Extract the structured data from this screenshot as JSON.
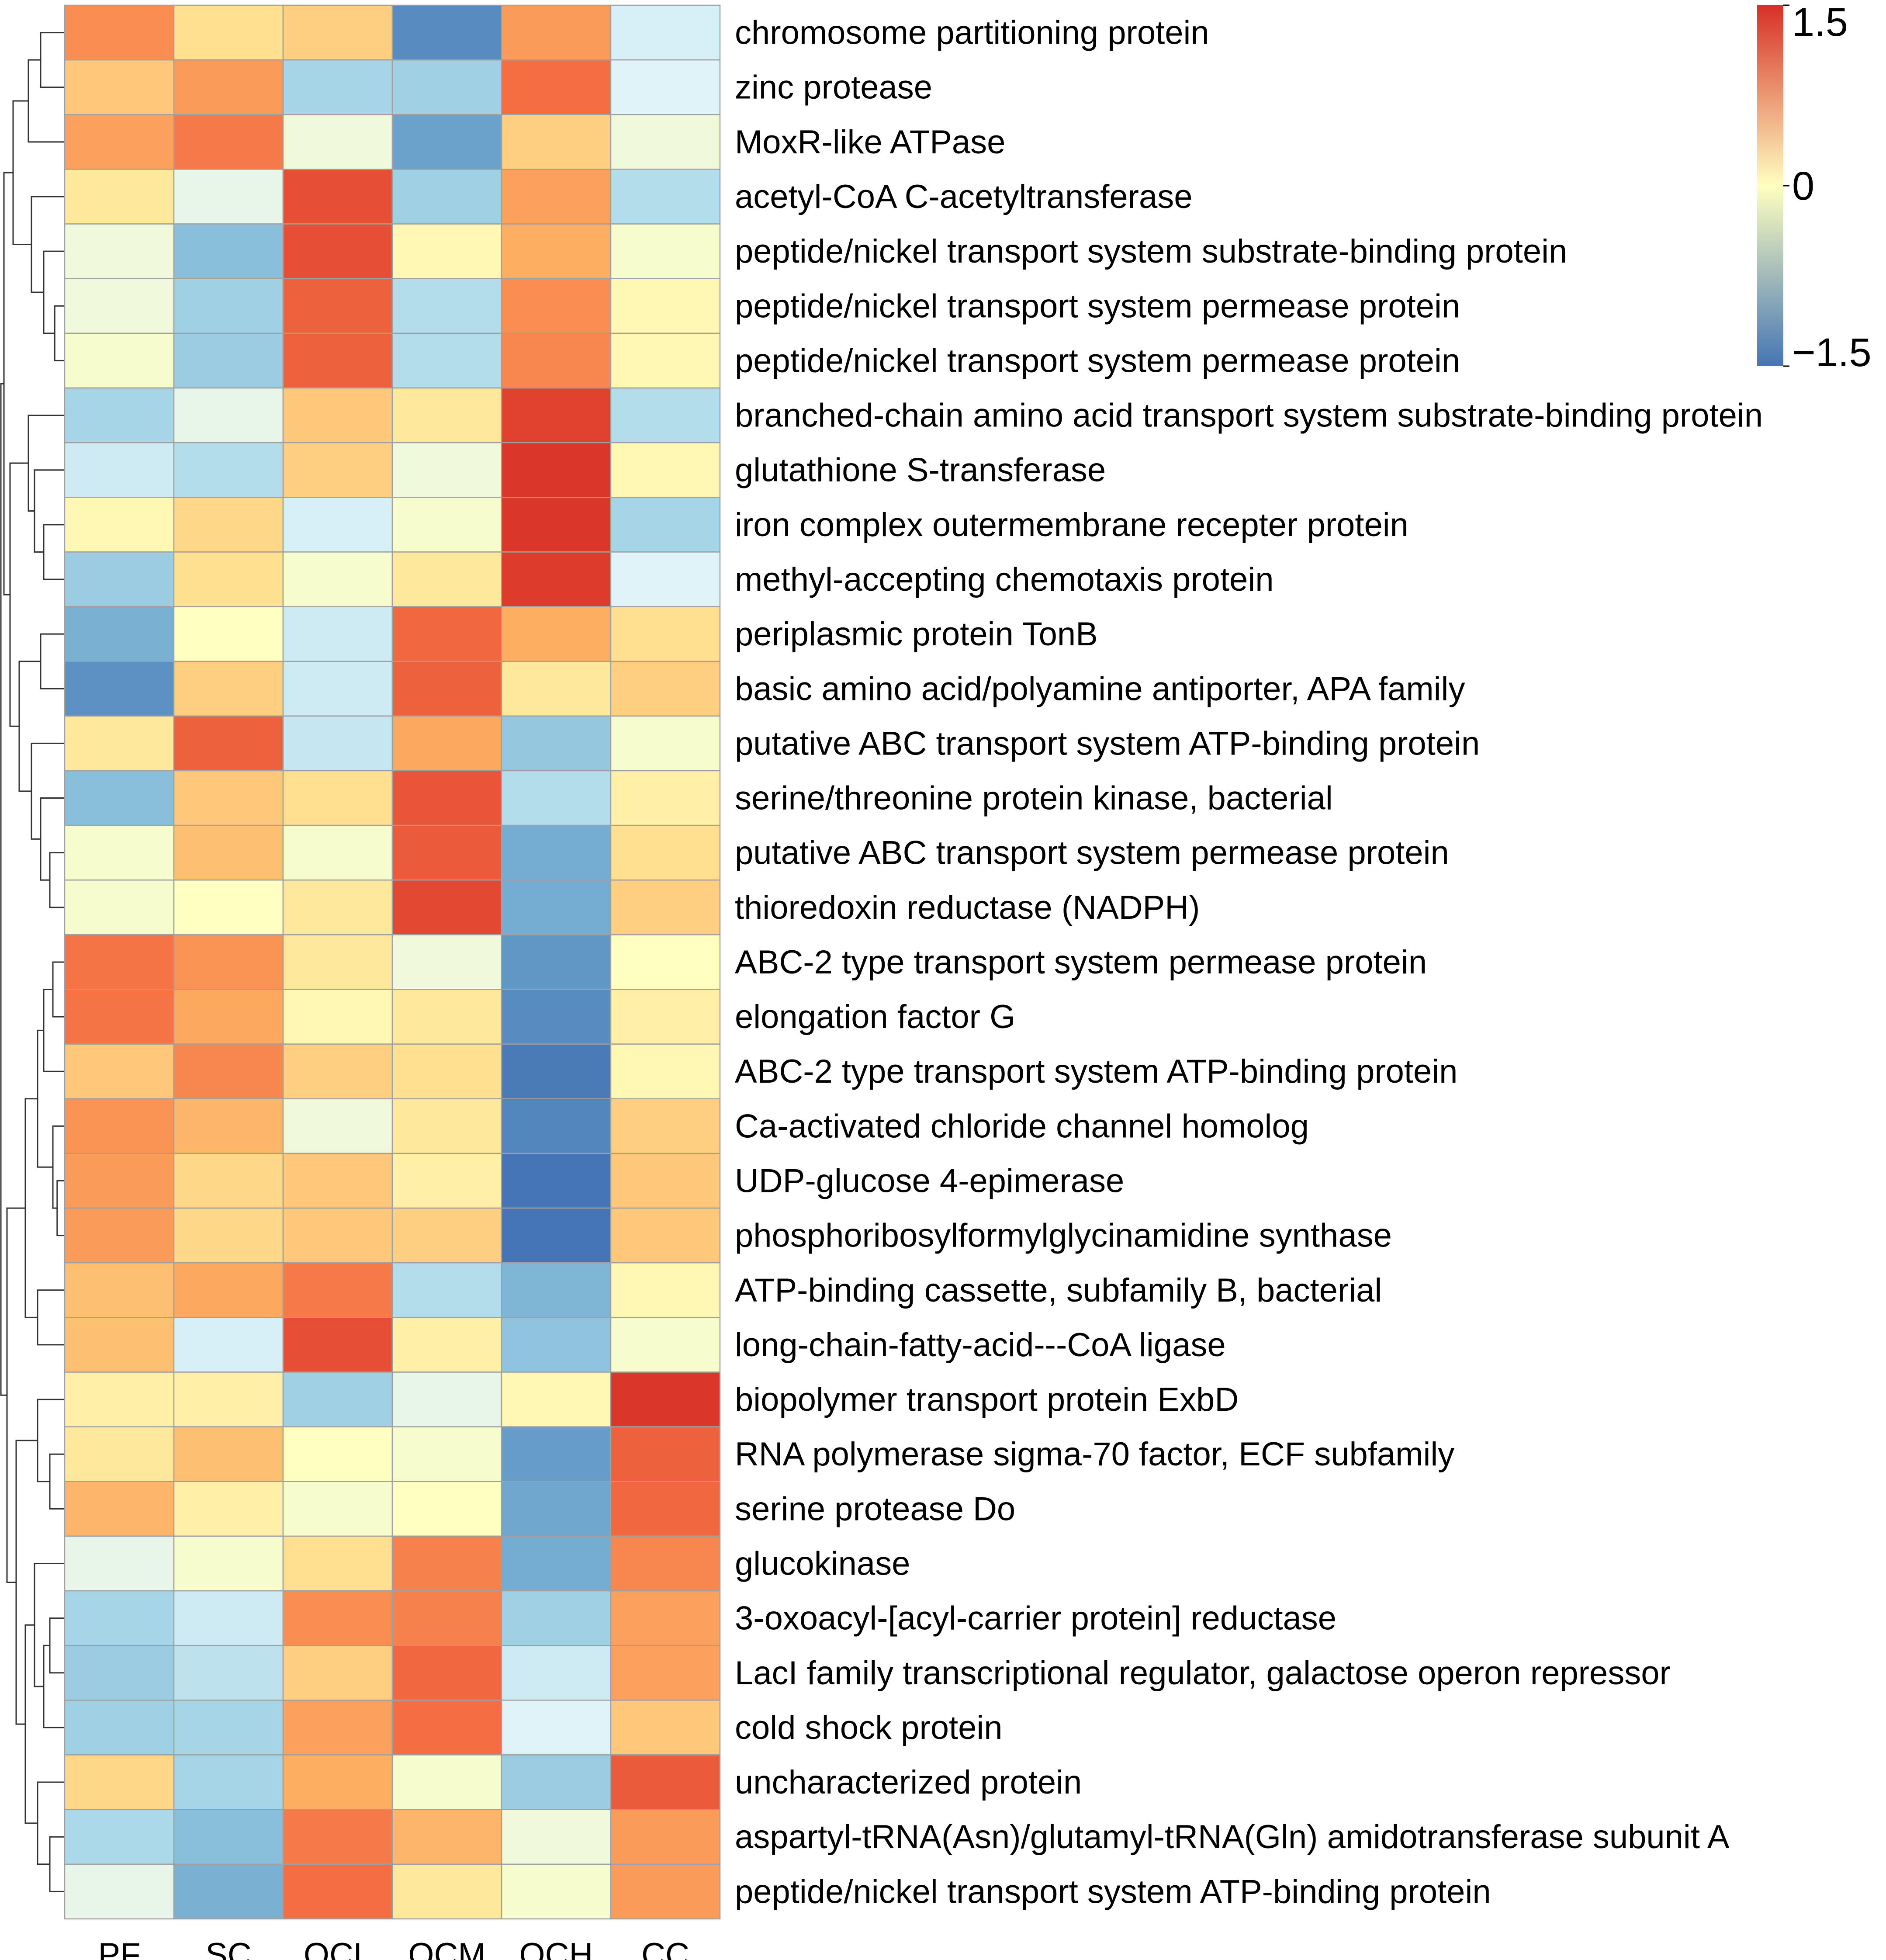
{
  "chart_data": {
    "type": "heatmap",
    "title": "",
    "columns": [
      "PF",
      "SC",
      "OCL",
      "OCM",
      "OCH",
      "CC"
    ],
    "rows": [
      "chromosome partitioning protein",
      "zinc protease",
      "MoxR-like ATPase",
      "acetyl-CoA C-acetyltransferase",
      "peptide/nickel transport system substrate-binding protein",
      "peptide/nickel transport system permease protein",
      "peptide/nickel transport system permease protein",
      "branched-chain amino acid transport system substrate-binding protein",
      "glutathione S-transferase",
      "iron complex outermembrane recepter protein",
      "methyl-accepting chemotaxis protein",
      "periplasmic protein TonB",
      "basic amino acid/polyamine antiporter, APA family",
      "putative ABC transport system ATP-binding protein",
      "serine/threonine protein kinase, bacterial",
      "putative ABC transport system permease protein",
      "thioredoxin reductase (NADPH)",
      "ABC-2 type transport system permease protein",
      "elongation factor G",
      "ABC-2 type transport system ATP-binding protein",
      "Ca-activated chloride channel homolog",
      "UDP-glucose 4-epimerase",
      "phosphoribosylformylglycinamidine synthase",
      "ATP-binding cassette, subfamily B, bacterial",
      "long-chain-fatty-acid---CoA ligase",
      "biopolymer transport protein ExbD",
      "RNA polymerase sigma-70 factor, ECF subfamily",
      "serine protease Do",
      "glucokinase",
      "3-oxoacyl-[acyl-carrier protein] reductase",
      "LacI family transcriptional regulator, galactose operon repressor",
      "cold shock protein",
      "uncharacterized protein",
      "aspartyl-tRNA(Asn)/glutamyl-tRNA(Gln) amidotransferase subunit A",
      "peptide/nickel transport system ATP-binding protein"
    ],
    "values": [
      [
        0.75,
        0.2,
        0.3,
        -1.3,
        0.65,
        -0.25
      ],
      [
        0.35,
        0.65,
        -0.55,
        -0.6,
        1.0,
        -0.2
      ],
      [
        0.6,
        0.9,
        -0.1,
        -1.1,
        0.3,
        -0.1
      ],
      [
        0.15,
        -0.15,
        1.25,
        -0.6,
        0.6,
        -0.45
      ],
      [
        -0.1,
        -0.8,
        1.25,
        0.05,
        0.5,
        -0.05
      ],
      [
        -0.1,
        -0.6,
        1.1,
        -0.45,
        0.75,
        0.05
      ],
      [
        -0.05,
        -0.65,
        1.1,
        -0.45,
        0.8,
        0.05
      ],
      [
        -0.55,
        -0.15,
        0.35,
        0.15,
        1.35,
        -0.45
      ],
      [
        -0.3,
        -0.45,
        0.3,
        -0.1,
        1.45,
        0.05
      ],
      [
        0.05,
        0.25,
        -0.25,
        -0.05,
        1.45,
        -0.55
      ],
      [
        -0.65,
        0.2,
        -0.05,
        0.15,
        1.4,
        -0.2
      ],
      [
        -0.95,
        0.0,
        -0.3,
        1.05,
        0.5,
        0.2
      ],
      [
        -1.25,
        0.3,
        -0.3,
        1.1,
        0.15,
        0.3
      ],
      [
        0.15,
        1.1,
        -0.35,
        0.55,
        -0.7,
        -0.05
      ],
      [
        -0.8,
        0.35,
        0.2,
        1.2,
        -0.45,
        0.1
      ],
      [
        -0.05,
        0.4,
        -0.05,
        1.15,
        -1.0,
        0.2
      ],
      [
        -0.05,
        0.0,
        0.15,
        1.3,
        -1.0,
        0.3
      ],
      [
        0.95,
        0.7,
        0.15,
        -0.1,
        -1.2,
        0.0
      ],
      [
        0.95,
        0.55,
        0.05,
        0.15,
        -1.3,
        0.1
      ],
      [
        0.35,
        0.8,
        0.3,
        0.2,
        -1.45,
        0.05
      ],
      [
        0.7,
        0.45,
        -0.1,
        0.15,
        -1.35,
        0.3
      ],
      [
        0.65,
        0.25,
        0.35,
        0.1,
        -1.5,
        0.35
      ],
      [
        0.65,
        0.25,
        0.35,
        0.3,
        -1.5,
        0.35
      ],
      [
        0.4,
        0.55,
        0.9,
        -0.45,
        -0.9,
        0.05
      ],
      [
        0.4,
        -0.25,
        1.25,
        0.1,
        -0.75,
        -0.05
      ],
      [
        0.1,
        0.1,
        -0.6,
        -0.15,
        0.05,
        1.45
      ],
      [
        0.15,
        0.4,
        0.0,
        -0.05,
        -1.15,
        1.1
      ],
      [
        0.45,
        0.1,
        -0.05,
        0.0,
        -1.05,
        1.05
      ],
      [
        -0.15,
        -0.05,
        0.2,
        0.85,
        -1.0,
        0.8
      ],
      [
        -0.55,
        -0.3,
        0.75,
        0.85,
        -0.6,
        0.6
      ],
      [
        -0.65,
        -0.4,
        0.3,
        1.05,
        -0.3,
        0.6
      ],
      [
        -0.6,
        -0.55,
        0.6,
        1.0,
        -0.2,
        0.35
      ],
      [
        0.25,
        -0.55,
        0.5,
        -0.05,
        -0.65,
        1.15
      ],
      [
        -0.5,
        -0.8,
        0.9,
        0.45,
        -0.1,
        0.65
      ],
      [
        -0.15,
        -0.95,
        1.0,
        0.15,
        -0.05,
        0.65
      ]
    ],
    "color_scale": {
      "min": -1.5,
      "mid": 0,
      "max": 1.5,
      "low_color": "#4575b4",
      "mid_color": "#ffffbf",
      "high_color": "#d73027",
      "tick_labels": [
        "1.5",
        "0",
        "−1.5"
      ],
      "tick_values": [
        1.5,
        0,
        -1.5
      ]
    },
    "grid_color": "#a0a0a0",
    "dendrogram": "rows",
    "legend_position": "top-right",
    "xlabel": "",
    "ylabel": ""
  }
}
